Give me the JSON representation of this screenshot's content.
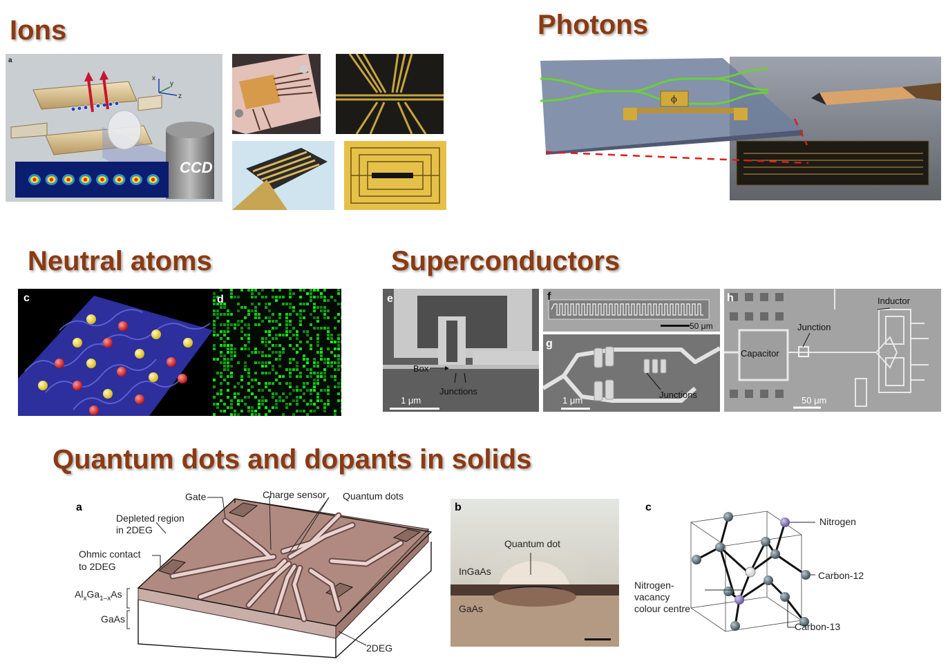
{
  "headings": {
    "ions": "Ions",
    "photons": "Photons",
    "neutral_atoms": "Neutral atoms",
    "superconductors": "Superconductors",
    "quantum_dots": "Quantum dots and dopants in solids"
  },
  "ions": {
    "panel_letter": "a",
    "ccd": "CCD",
    "axis_x": "x",
    "axis_y": "y",
    "axis_z": "z",
    "ion_count": 8
  },
  "photons": {
    "phase": "ϕ"
  },
  "neutral": {
    "panel_c": "c",
    "panel_d": "d"
  },
  "superconductors": {
    "panel_e": "e",
    "panel_f": "f",
    "panel_g": "g",
    "panel_h": "h",
    "box": "Box",
    "junctions_e": "Junctions",
    "scale_e": "1 μm",
    "scale_f": "50 μm",
    "scale_g": "1 μm",
    "junctions_g": "Junctions",
    "capacitor": "Capacitor",
    "junction_h": "Junction",
    "inductor": "Inductor",
    "scale_h": "50 μm"
  },
  "qd": {
    "panel_a": "a",
    "panel_b": "b",
    "panel_c": "c",
    "gate": "Gate",
    "charge_sensor": "Charge sensor",
    "quantum_dots": "Quantum dots",
    "depleted_1": "Depleted region",
    "depleted_2": "in 2DEG",
    "ohmic_1": "Ohmic contact",
    "ohmic_2": "to 2DEG",
    "algaas_al": "Al",
    "algaas_x1": "x",
    "algaas_ga": "Ga",
    "algaas_x2": "1–x",
    "algaas_as": "As",
    "gaas_a": "GaAs",
    "deg": "2DEG",
    "quantum_dot": "Quantum dot",
    "ingaas": "InGaAs",
    "gaas_b": "GaAs",
    "nitrogen": "Nitrogen",
    "nv_1": "Nitrogen-",
    "nv_2": "vacancy",
    "nv_3": "colour centre",
    "carbon12": "Carbon-12",
    "carbon13": "Carbon-13"
  },
  "colors": {
    "heading": "#8b3a12",
    "waveguide": "#6ccf3a",
    "atom_red": "#d81818",
    "atom_yellow": "#f0d21a",
    "lattice_blue": "#2c2f9c",
    "gold": "#d2aa3a",
    "slab": "#b08a80"
  }
}
